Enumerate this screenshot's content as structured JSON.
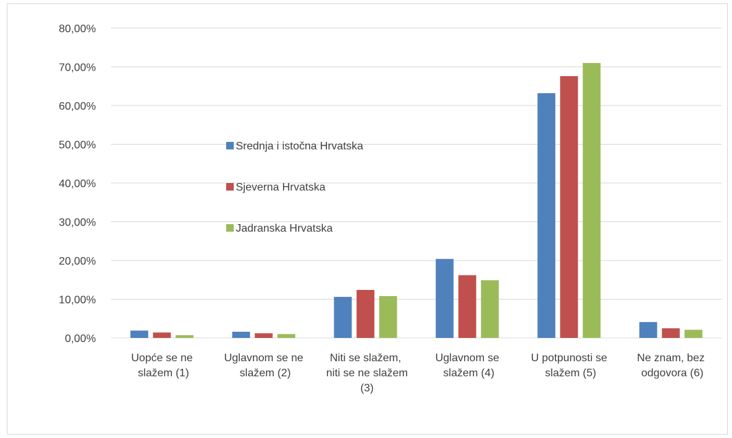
{
  "chart_data": {
    "type": "bar",
    "categories": [
      "Uopće se ne slažem (1)",
      "Uglavnom se ne slažem (2)",
      "Niti se slažem, niti se ne slažem (3)",
      "Uglavnom se slažem (4)",
      "U potpunosti se slažem (5)",
      "Ne znam, bez odgovora (6)"
    ],
    "series": [
      {
        "name": "Srednja i istočna Hrvatska",
        "color": "#4f81bd",
        "values": [
          1.9,
          1.6,
          10.6,
          20.4,
          63.2,
          4.1
        ]
      },
      {
        "name": "Sjeverna Hrvatska",
        "color": "#c0504d",
        "values": [
          1.4,
          1.2,
          12.4,
          16.2,
          67.6,
          2.5
        ]
      },
      {
        "name": "Jadranska Hrvatska",
        "color": "#9bbb59",
        "values": [
          0.7,
          1.0,
          10.8,
          14.9,
          71.0,
          2.1
        ]
      }
    ],
    "ylim": [
      0,
      80
    ],
    "yticks": [
      {
        "value": 0,
        "label": "0,00%"
      },
      {
        "value": 10,
        "label": "10,00%"
      },
      {
        "value": 20,
        "label": "20,00%"
      },
      {
        "value": 30,
        "label": "30,00%"
      },
      {
        "value": 40,
        "label": "40,00%"
      },
      {
        "value": 50,
        "label": "50,00%"
      },
      {
        "value": 60,
        "label": "60,00%"
      },
      {
        "value": 70,
        "label": "70,00%"
      },
      {
        "value": 80,
        "label": "80,00%"
      }
    ],
    "grid": true,
    "legend_position": "center-left"
  }
}
